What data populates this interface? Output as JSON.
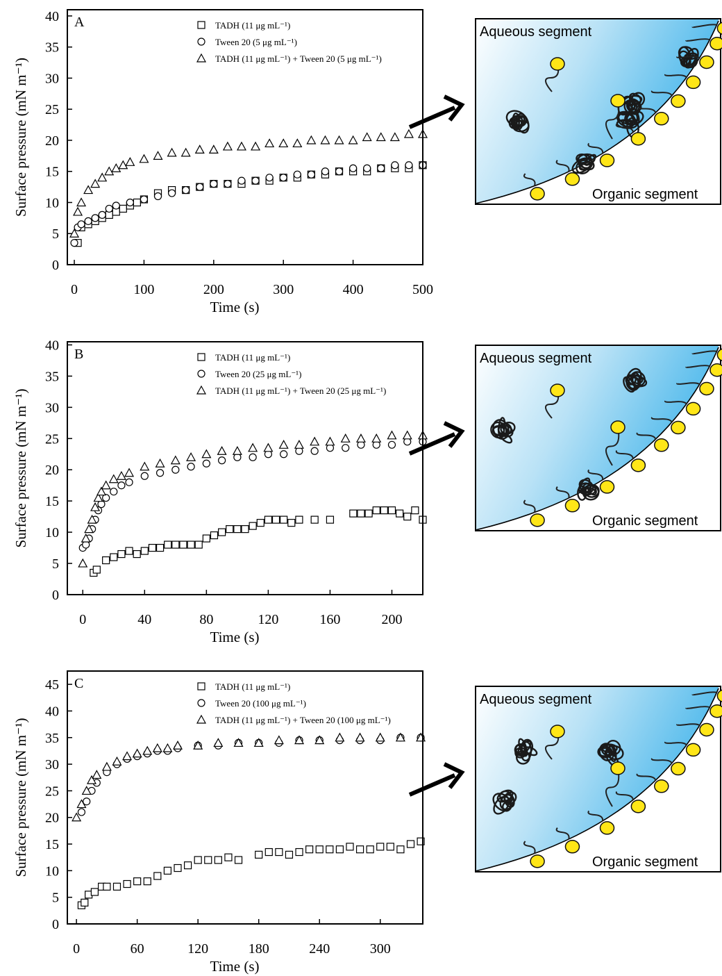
{
  "chart_data": [
    {
      "type": "scatter",
      "panel_label": "A",
      "x_label": "Time (s)",
      "y_label": "Surface pressure (mN m⁻¹)",
      "xlim": [
        -10,
        500
      ],
      "ylim": [
        0,
        41
      ],
      "xticks": [
        0,
        100,
        200,
        300,
        400,
        500
      ],
      "yticks": [
        0,
        5,
        10,
        15,
        20,
        25,
        30,
        35,
        40
      ],
      "series": [
        {
          "name": "TADH (11 μg mL⁻¹)",
          "marker": "square",
          "color": "#000000",
          "x": [
            5,
            10,
            20,
            30,
            40,
            50,
            60,
            70,
            80,
            90,
            100,
            120,
            140,
            160,
            180,
            200,
            220,
            240,
            260,
            280,
            300,
            320,
            340,
            360,
            380,
            400,
            420,
            440,
            460,
            480,
            500
          ],
          "values": [
            3.5,
            6,
            6.5,
            7,
            7.5,
            8,
            8.5,
            9,
            9.5,
            10,
            10.5,
            11.5,
            12,
            12,
            12.5,
            13,
            13,
            13,
            13.5,
            13.5,
            14,
            14,
            14.5,
            14.5,
            15,
            15,
            15,
            15.5,
            15.5,
            15.5,
            16
          ]
        },
        {
          "name": "Tween 20 (5 μg mL⁻¹)",
          "marker": "circle",
          "color": "#000000",
          "x": [
            0,
            5,
            10,
            20,
            30,
            40,
            50,
            60,
            80,
            100,
            120,
            140,
            160,
            180,
            200,
            220,
            240,
            260,
            280,
            300,
            320,
            340,
            360,
            380,
            400,
            420,
            440,
            460,
            480,
            500
          ],
          "values": [
            3.5,
            6,
            6.5,
            7,
            7.5,
            8,
            9,
            9.5,
            10,
            10.5,
            11,
            11.5,
            12,
            12.5,
            13,
            13,
            13.5,
            13.5,
            14,
            14,
            14.5,
            14.5,
            15,
            15,
            15.5,
            15.5,
            15.5,
            16,
            16,
            16
          ]
        },
        {
          "name": "TADH (11 μg mL⁻¹) + Tween 20 (5 μg mL⁻¹)",
          "marker": "triangle",
          "color": "#000000",
          "x": [
            0,
            5,
            10,
            20,
            30,
            40,
            50,
            60,
            70,
            80,
            100,
            120,
            140,
            160,
            180,
            200,
            220,
            240,
            260,
            280,
            300,
            320,
            340,
            360,
            380,
            400,
            420,
            440,
            460,
            480,
            500
          ],
          "values": [
            5,
            8.5,
            10,
            12,
            13,
            14,
            15,
            15.5,
            16,
            16.5,
            17,
            17.5,
            18,
            18,
            18.5,
            18.5,
            19,
            19,
            19,
            19.5,
            19.5,
            19.5,
            20,
            20,
            20,
            20,
            20.5,
            20.5,
            20.5,
            21,
            21
          ]
        }
      ]
    },
    {
      "type": "scatter",
      "panel_label": "B",
      "x_label": "Time (s)",
      "y_label": "Surface pressure (mN m⁻¹)",
      "xlim": [
        -10,
        220
      ],
      "ylim": [
        0,
        40.5
      ],
      "xticks": [
        0,
        40,
        80,
        120,
        160,
        200
      ],
      "yticks": [
        0,
        5,
        10,
        15,
        20,
        25,
        30,
        35,
        40
      ],
      "series": [
        {
          "name": "TADH (11 μg mL⁻¹)",
          "marker": "square",
          "color": "#000000",
          "x": [
            7,
            9,
            15,
            20,
            25,
            30,
            35,
            40,
            45,
            50,
            55,
            60,
            65,
            70,
            75,
            80,
            85,
            90,
            95,
            100,
            105,
            110,
            115,
            120,
            125,
            130,
            135,
            140,
            150,
            160,
            175,
            180,
            185,
            190,
            195,
            200,
            205,
            210,
            215,
            220
          ],
          "values": [
            3.5,
            4,
            5.5,
            6,
            6.5,
            7,
            6.5,
            7,
            7.5,
            7.5,
            8,
            8,
            8,
            8,
            8,
            9,
            9.5,
            10,
            10.5,
            10.5,
            10.5,
            11,
            11.5,
            12,
            12,
            12,
            11.5,
            12,
            12,
            12,
            13,
            13,
            13,
            13.5,
            13.5,
            13.5,
            13,
            12.5,
            13.5,
            12
          ]
        },
        {
          "name": "Tween 20 (25 μg mL⁻¹)",
          "marker": "circle",
          "color": "#000000",
          "x": [
            0,
            2,
            4,
            6,
            8,
            10,
            12,
            15,
            20,
            25,
            30,
            40,
            50,
            60,
            70,
            80,
            90,
            100,
            110,
            120,
            130,
            140,
            150,
            160,
            170,
            180,
            190,
            200,
            210,
            220
          ],
          "values": [
            7.5,
            8,
            9,
            10.5,
            12,
            13.5,
            14.5,
            15.5,
            16.5,
            17.5,
            18,
            19,
            19.5,
            20,
            20.5,
            21,
            21.5,
            22,
            22,
            22.5,
            22.5,
            23,
            23,
            23.5,
            23.5,
            24,
            24,
            24,
            24.5,
            24.5
          ]
        },
        {
          "name": "TADH (11 μg mL⁻¹) + Tween 20 (25 μg mL⁻¹)",
          "marker": "triangle",
          "color": "#000000",
          "x": [
            0,
            2,
            4,
            6,
            8,
            10,
            12,
            15,
            20,
            25,
            30,
            40,
            50,
            60,
            70,
            80,
            90,
            100,
            110,
            120,
            130,
            140,
            150,
            160,
            170,
            180,
            190,
            200,
            210,
            220
          ],
          "values": [
            5,
            9,
            10.5,
            12,
            14,
            15.5,
            16.5,
            17.5,
            18.5,
            19,
            19.5,
            20.5,
            21,
            21.5,
            22,
            22.5,
            23,
            23,
            23.5,
            23.5,
            24,
            24,
            24.5,
            24.5,
            25,
            25,
            25,
            25.5,
            25.5,
            25.5
          ]
        }
      ]
    },
    {
      "type": "scatter",
      "panel_label": "C",
      "x_label": "Time (s)",
      "y_label": "Surface pressure (mN m⁻¹)",
      "xlim": [
        -9,
        342
      ],
      "ylim": [
        0,
        47.5
      ],
      "xticks": [
        0,
        60,
        120,
        180,
        240,
        300
      ],
      "yticks": [
        0,
        5,
        10,
        15,
        20,
        25,
        30,
        35,
        40,
        45
      ],
      "series": [
        {
          "name": "TADH (11 μg mL⁻¹)",
          "marker": "square",
          "color": "#000000",
          "x": [
            5,
            8,
            12,
            18,
            25,
            30,
            40,
            50,
            60,
            70,
            80,
            90,
            100,
            110,
            120,
            130,
            140,
            150,
            160,
            180,
            190,
            200,
            210,
            220,
            230,
            240,
            250,
            260,
            270,
            280,
            290,
            300,
            310,
            320,
            330,
            340
          ],
          "values": [
            3.5,
            4,
            5.5,
            6,
            7,
            7,
            7,
            7.5,
            8,
            8,
            9,
            10,
            10.5,
            11,
            12,
            12,
            12,
            12.5,
            12,
            13,
            13.5,
            13.5,
            13,
            13.5,
            14,
            14,
            14,
            14,
            14.5,
            14,
            14,
            14.5,
            14.5,
            14,
            15,
            15.5
          ]
        },
        {
          "name": "Tween 20 (100 μg mL⁻¹)",
          "marker": "circle",
          "color": "#000000",
          "x": [
            5,
            10,
            15,
            20,
            30,
            40,
            50,
            60,
            70,
            80,
            90,
            100,
            120,
            140,
            160,
            180,
            200,
            220,
            240,
            260,
            280,
            300,
            320,
            340
          ],
          "values": [
            21,
            23,
            25,
            26.5,
            28.5,
            30,
            31,
            31.5,
            32,
            32.5,
            32.5,
            33,
            33.5,
            33.5,
            34,
            34,
            34,
            34.5,
            34.5,
            34.5,
            34.5,
            34.5,
            35,
            35
          ]
        },
        {
          "name": "TADH (11 μg mL⁻¹) + Tween 20 (100 μg mL⁻¹)",
          "marker": "triangle",
          "color": "#000000",
          "x": [
            0,
            5,
            10,
            15,
            20,
            30,
            40,
            50,
            60,
            70,
            80,
            90,
            100,
            120,
            140,
            160,
            180,
            200,
            220,
            240,
            260,
            280,
            300,
            320,
            340
          ],
          "values": [
            20,
            22.5,
            25,
            27,
            28,
            29.5,
            30.5,
            31.5,
            32,
            32.5,
            33,
            33,
            33.5,
            33.5,
            34,
            34,
            34,
            34.5,
            34.5,
            34.5,
            35,
            35,
            35,
            35,
            35
          ]
        }
      ]
    }
  ],
  "diagrams": [
    {
      "top_label": "Aqueous segment",
      "bottom_label": "Organic segment"
    },
    {
      "top_label": "Aqueous segment",
      "bottom_label": "Organic segment"
    },
    {
      "top_label": "Aqueous segment",
      "bottom_label": "Organic segment"
    }
  ]
}
